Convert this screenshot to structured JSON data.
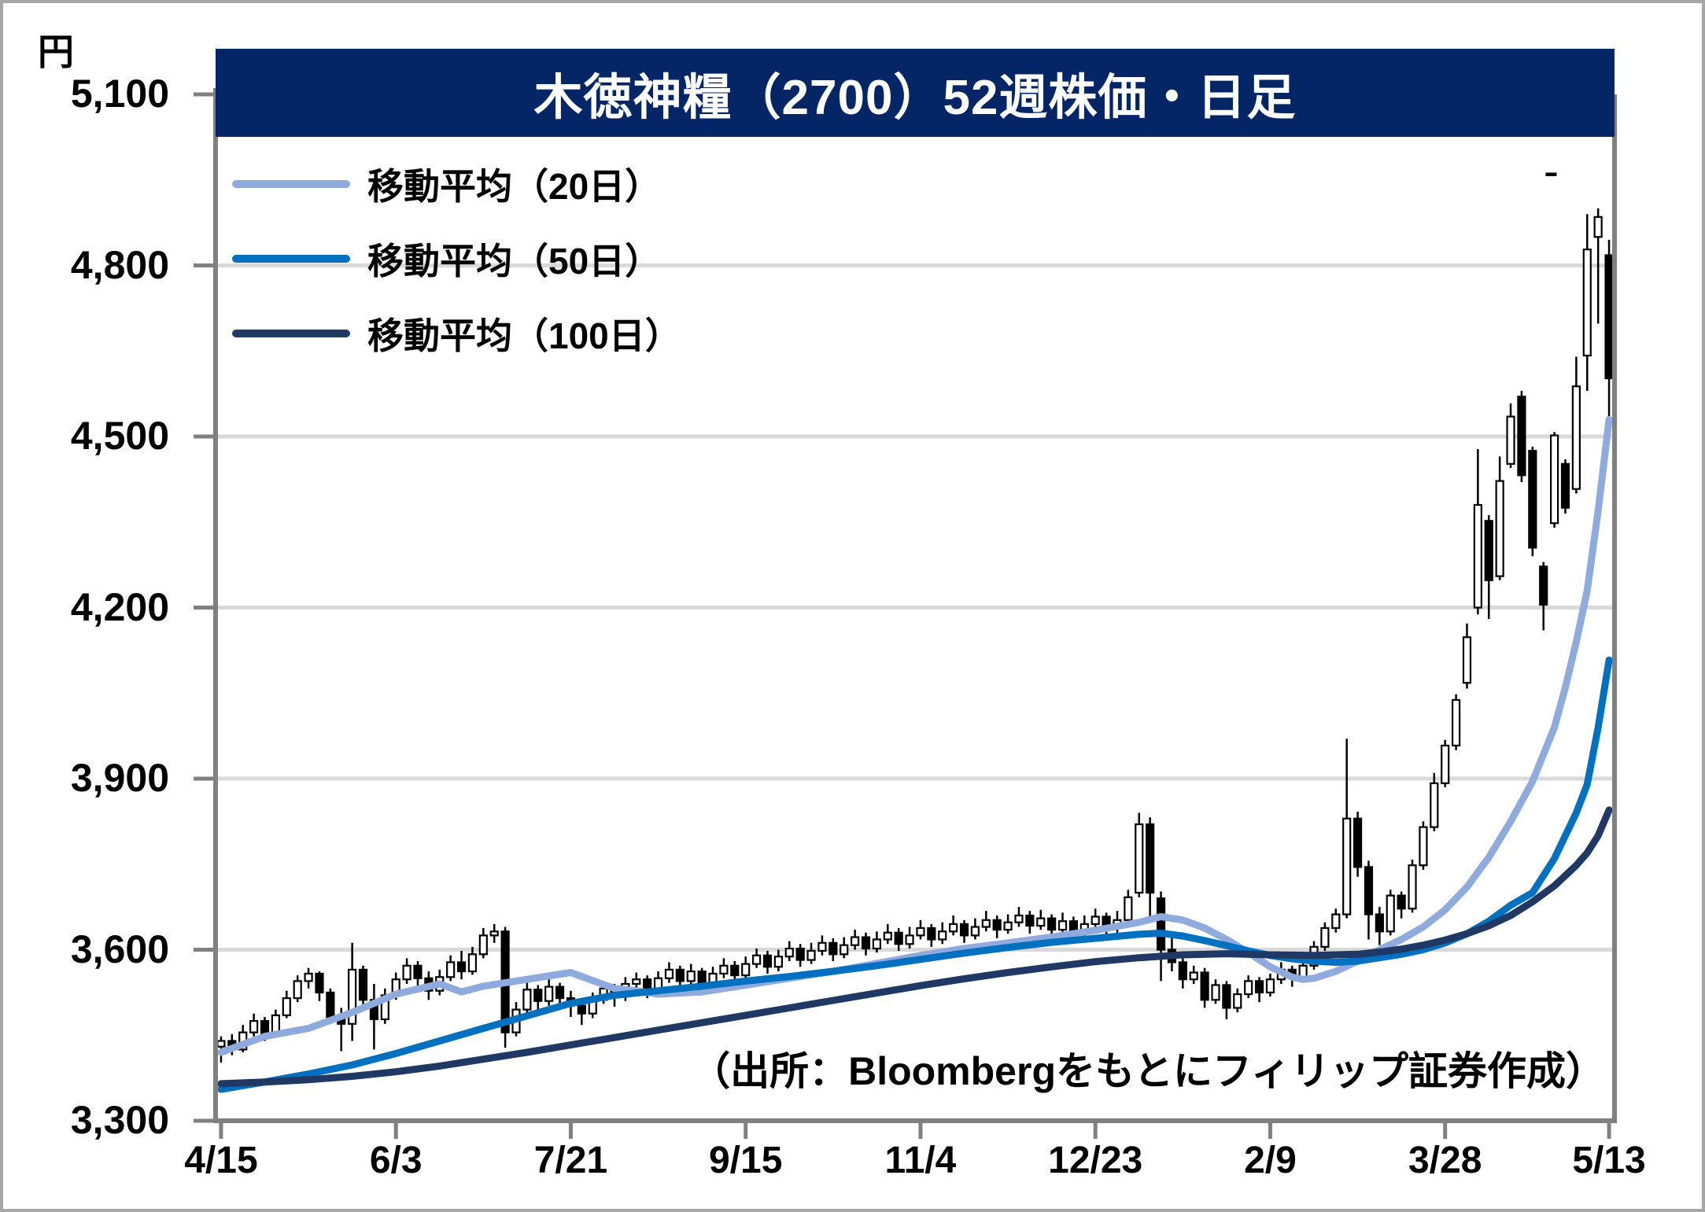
{
  "title": "木徳神糧（2700）52週株価・日足",
  "y_axis": {
    "unit": "円",
    "tick_labels": [
      "5,100",
      "4,800",
      "4,500",
      "4,200",
      "3,900",
      "3,600",
      "3,300"
    ],
    "tick_values": [
      5100,
      4800,
      4500,
      4200,
      3900,
      3600,
      3300
    ]
  },
  "x_axis": {
    "labels": [
      "4/15",
      "6/3",
      "7/21",
      "9/15",
      "11/4",
      "12/23",
      "2/9",
      "3/28",
      "5/13"
    ],
    "label_indices": [
      0,
      16,
      32,
      48,
      64,
      80,
      96,
      112,
      127
    ]
  },
  "legend": {
    "items": [
      {
        "label": "移動平均（20日）",
        "color": "#8FAADC"
      },
      {
        "label": "移動平均（50日）",
        "color": "#0070C0"
      },
      {
        "label": "移動平均（100日）",
        "color": "#1F3864"
      }
    ]
  },
  "source_note": "（出所：Bloombergをもとにフィリップ証券作成）",
  "colors": {
    "title_bar": "#042566",
    "title_text": "#FFFFFF",
    "grid": "#D9D9D9",
    "axis": "#808080",
    "candle_outline": "#000000",
    "candle_up_fill": "#FFFFFF",
    "candle_down_fill": "#000000",
    "background": "#FFFFFF",
    "outer_border": "#A6A6A6"
  },
  "chart_data": {
    "type": "candlestick",
    "title": "木徳神糧（2700）52週株価・日足",
    "ylabel": "円",
    "ylim": [
      3300,
      5100
    ],
    "y_step": 300,
    "grid": "horizontal-only",
    "legend_position": "top-left-inside",
    "n_candles": 128,
    "candles_ohlc": [
      [
        3430,
        3448,
        3402,
        3440
      ],
      [
        3440,
        3452,
        3415,
        3425
      ],
      [
        3425,
        3468,
        3420,
        3455
      ],
      [
        3455,
        3488,
        3448,
        3475
      ],
      [
        3475,
        3482,
        3440,
        3452
      ],
      [
        3452,
        3495,
        3446,
        3485
      ],
      [
        3485,
        3528,
        3480,
        3515
      ],
      [
        3515,
        3555,
        3508,
        3545
      ],
      [
        3545,
        3568,
        3532,
        3558
      ],
      [
        3558,
        3562,
        3510,
        3525
      ],
      [
        3525,
        3532,
        3470,
        3482
      ],
      [
        3482,
        3498,
        3422,
        3470
      ],
      [
        3470,
        3612,
        3440,
        3565
      ],
      [
        3565,
        3572,
        3498,
        3512
      ],
      [
        3512,
        3540,
        3425,
        3478
      ],
      [
        3478,
        3532,
        3470,
        3520
      ],
      [
        3520,
        3560,
        3512,
        3548
      ],
      [
        3548,
        3585,
        3540,
        3572
      ],
      [
        3572,
        3580,
        3536,
        3550
      ],
      [
        3550,
        3562,
        3512,
        3528
      ],
      [
        3528,
        3565,
        3520,
        3552
      ],
      [
        3552,
        3590,
        3545,
        3578
      ],
      [
        3578,
        3598,
        3548,
        3562
      ],
      [
        3562,
        3605,
        3556,
        3592
      ],
      [
        3592,
        3638,
        3585,
        3625
      ],
      [
        3625,
        3645,
        3612,
        3632
      ],
      [
        3632,
        3640,
        3428,
        3455
      ],
      [
        3455,
        3508,
        3448,
        3495
      ],
      [
        3495,
        3542,
        3488,
        3530
      ],
      [
        3530,
        3538,
        3495,
        3510
      ],
      [
        3510,
        3548,
        3502,
        3535
      ],
      [
        3535,
        3542,
        3498,
        3515
      ],
      [
        3515,
        3528,
        3482,
        3502
      ],
      [
        3502,
        3512,
        3468,
        3488
      ],
      [
        3488,
        3525,
        3480,
        3512
      ],
      [
        3512,
        3545,
        3505,
        3532
      ],
      [
        3532,
        3540,
        3500,
        3518
      ],
      [
        3518,
        3552,
        3510,
        3540
      ],
      [
        3540,
        3560,
        3528,
        3548
      ],
      [
        3548,
        3555,
        3515,
        3528
      ],
      [
        3528,
        3562,
        3520,
        3550
      ],
      [
        3550,
        3578,
        3542,
        3565
      ],
      [
        3565,
        3572,
        3532,
        3545
      ],
      [
        3545,
        3575,
        3538,
        3562
      ],
      [
        3562,
        3568,
        3528,
        3540
      ],
      [
        3540,
        3570,
        3532,
        3558
      ],
      [
        3558,
        3585,
        3550,
        3572
      ],
      [
        3572,
        3580,
        3540,
        3555
      ],
      [
        3555,
        3588,
        3548,
        3575
      ],
      [
        3575,
        3602,
        3568,
        3590
      ],
      [
        3590,
        3598,
        3558,
        3570
      ],
      [
        3570,
        3600,
        3562,
        3588
      ],
      [
        3588,
        3615,
        3580,
        3602
      ],
      [
        3602,
        3610,
        3570,
        3582
      ],
      [
        3582,
        3612,
        3575,
        3598
      ],
      [
        3598,
        3625,
        3590,
        3612
      ],
      [
        3612,
        3620,
        3580,
        3592
      ],
      [
        3592,
        3622,
        3585,
        3608
      ],
      [
        3608,
        3635,
        3600,
        3622
      ],
      [
        3622,
        3630,
        3590,
        3602
      ],
      [
        3602,
        3632,
        3595,
        3618
      ],
      [
        3618,
        3645,
        3610,
        3630
      ],
      [
        3630,
        3638,
        3598,
        3610
      ],
      [
        3610,
        3640,
        3602,
        3625
      ],
      [
        3625,
        3652,
        3618,
        3638
      ],
      [
        3638,
        3645,
        3605,
        3618
      ],
      [
        3618,
        3648,
        3610,
        3632
      ],
      [
        3632,
        3660,
        3625,
        3645
      ],
      [
        3645,
        3652,
        3612,
        3625
      ],
      [
        3625,
        3655,
        3618,
        3640
      ],
      [
        3640,
        3668,
        3632,
        3652
      ],
      [
        3652,
        3660,
        3620,
        3635
      ],
      [
        3635,
        3662,
        3628,
        3648
      ],
      [
        3648,
        3675,
        3640,
        3660
      ],
      [
        3660,
        3668,
        3628,
        3642
      ],
      [
        3642,
        3670,
        3635,
        3655
      ],
      [
        3655,
        3662,
        3622,
        3635
      ],
      [
        3635,
        3665,
        3628,
        3650
      ],
      [
        3650,
        3658,
        3618,
        3630
      ],
      [
        3630,
        3660,
        3622,
        3645
      ],
      [
        3645,
        3672,
        3638,
        3658
      ],
      [
        3658,
        3665,
        3625,
        3638
      ],
      [
        3638,
        3668,
        3630,
        3652
      ],
      [
        3652,
        3705,
        3645,
        3692
      ],
      [
        3700,
        3840,
        3692,
        3820
      ],
      [
        3820,
        3832,
        3655,
        3700
      ],
      [
        3690,
        3702,
        3545,
        3600
      ],
      [
        3600,
        3625,
        3562,
        3578
      ],
      [
        3578,
        3585,
        3532,
        3548
      ],
      [
        3548,
        3572,
        3540,
        3560
      ],
      [
        3560,
        3568,
        3498,
        3512
      ],
      [
        3512,
        3548,
        3505,
        3538
      ],
      [
        3538,
        3545,
        3478,
        3498
      ],
      [
        3498,
        3532,
        3490,
        3522
      ],
      [
        3522,
        3555,
        3515,
        3545
      ],
      [
        3545,
        3552,
        3508,
        3525
      ],
      [
        3525,
        3558,
        3518,
        3548
      ],
      [
        3548,
        3578,
        3540,
        3565
      ],
      [
        3565,
        3572,
        3535,
        3550
      ],
      [
        3550,
        3582,
        3542,
        3572
      ],
      [
        3572,
        3615,
        3565,
        3605
      ],
      [
        3605,
        3648,
        3598,
        3638
      ],
      [
        3638,
        3672,
        3630,
        3662
      ],
      [
        3662,
        3970,
        3655,
        3830
      ],
      [
        3830,
        3842,
        3728,
        3745
      ],
      [
        3745,
        3756,
        3618,
        3662
      ],
      [
        3662,
        3675,
        3608,
        3632
      ],
      [
        3632,
        3705,
        3625,
        3695
      ],
      [
        3695,
        3702,
        3655,
        3672
      ],
      [
        3672,
        3758,
        3665,
        3748
      ],
      [
        3748,
        3825,
        3740,
        3815
      ],
      [
        3815,
        3910,
        3808,
        3892
      ],
      [
        3892,
        3968,
        3885,
        3958
      ],
      [
        3958,
        4048,
        3950,
        4038
      ],
      [
        4068,
        4172,
        4058,
        4148
      ],
      [
        4200,
        4478,
        4188,
        4380
      ],
      [
        4352,
        4362,
        4180,
        4248
      ],
      [
        4255,
        4465,
        4248,
        4422
      ],
      [
        4452,
        4558,
        4445,
        4535
      ],
      [
        4570,
        4580,
        4420,
        4432
      ],
      [
        4475,
        4482,
        4290,
        4305
      ],
      [
        4272,
        4280,
        4160,
        4205
      ],
      [
        4348,
        4508,
        4340,
        4502
      ],
      [
        4452,
        4460,
        4365,
        4375
      ],
      [
        4408,
        4640,
        4400,
        4588
      ],
      [
        4642,
        4890,
        4580,
        4828
      ],
      [
        4850,
        4900,
        4698,
        4885
      ],
      [
        4818,
        4845,
        4500,
        4602
      ]
    ],
    "stray_high_dash": {
      "index": 121.7,
      "price": 4960
    },
    "series": [
      {
        "name": "移動平均（20日）",
        "color": "#8FAADC",
        "points": [
          [
            0,
            3420
          ],
          [
            4,
            3448
          ],
          [
            8,
            3462
          ],
          [
            12,
            3490
          ],
          [
            16,
            3522
          ],
          [
            20,
            3540
          ],
          [
            22,
            3526
          ],
          [
            24,
            3536
          ],
          [
            28,
            3548
          ],
          [
            32,
            3560
          ],
          [
            34,
            3546
          ],
          [
            36,
            3532
          ],
          [
            38,
            3528
          ],
          [
            40,
            3522
          ],
          [
            44,
            3526
          ],
          [
            48,
            3538
          ],
          [
            52,
            3550
          ],
          [
            56,
            3562
          ],
          [
            60,
            3576
          ],
          [
            64,
            3590
          ],
          [
            68,
            3602
          ],
          [
            72,
            3612
          ],
          [
            76,
            3622
          ],
          [
            80,
            3634
          ],
          [
            84,
            3648
          ],
          [
            86,
            3658
          ],
          [
            88,
            3652
          ],
          [
            90,
            3638
          ],
          [
            92,
            3618
          ],
          [
            94,
            3595
          ],
          [
            96,
            3570
          ],
          [
            98,
            3552
          ],
          [
            99,
            3548
          ],
          [
            100,
            3550
          ],
          [
            102,
            3562
          ],
          [
            104,
            3580
          ],
          [
            106,
            3600
          ],
          [
            108,
            3618
          ],
          [
            110,
            3640
          ],
          [
            112,
            3670
          ],
          [
            114,
            3710
          ],
          [
            116,
            3762
          ],
          [
            118,
            3825
          ],
          [
            120,
            3895
          ],
          [
            122,
            3990
          ],
          [
            123,
            4060
          ],
          [
            124,
            4140
          ],
          [
            125,
            4230
          ],
          [
            126,
            4370
          ],
          [
            127,
            4530
          ]
        ]
      },
      {
        "name": "移動平均（50日）",
        "color": "#0070C0",
        "points": [
          [
            0,
            3355
          ],
          [
            4,
            3368
          ],
          [
            8,
            3382
          ],
          [
            12,
            3398
          ],
          [
            16,
            3418
          ],
          [
            20,
            3440
          ],
          [
            24,
            3462
          ],
          [
            28,
            3484
          ],
          [
            32,
            3506
          ],
          [
            36,
            3520
          ],
          [
            40,
            3528
          ],
          [
            44,
            3536
          ],
          [
            48,
            3545
          ],
          [
            52,
            3553
          ],
          [
            56,
            3562
          ],
          [
            60,
            3572
          ],
          [
            64,
            3583
          ],
          [
            68,
            3594
          ],
          [
            72,
            3604
          ],
          [
            76,
            3613
          ],
          [
            80,
            3620
          ],
          [
            84,
            3627
          ],
          [
            86,
            3629
          ],
          [
            88,
            3624
          ],
          [
            90,
            3616
          ],
          [
            92,
            3607
          ],
          [
            94,
            3598
          ],
          [
            96,
            3590
          ],
          [
            98,
            3584
          ],
          [
            100,
            3580
          ],
          [
            102,
            3578
          ],
          [
            104,
            3580
          ],
          [
            106,
            3586
          ],
          [
            108,
            3592
          ],
          [
            110,
            3600
          ],
          [
            112,
            3612
          ],
          [
            114,
            3628
          ],
          [
            116,
            3650
          ],
          [
            118,
            3678
          ],
          [
            120,
            3700
          ],
          [
            122,
            3760
          ],
          [
            124,
            3840
          ],
          [
            125,
            3890
          ],
          [
            126,
            3990
          ],
          [
            127,
            4108
          ]
        ]
      },
      {
        "name": "移動平均（100日）",
        "color": "#1F3864",
        "points": [
          [
            0,
            3365
          ],
          [
            4,
            3368
          ],
          [
            8,
            3372
          ],
          [
            12,
            3378
          ],
          [
            16,
            3386
          ],
          [
            20,
            3396
          ],
          [
            24,
            3408
          ],
          [
            28,
            3420
          ],
          [
            32,
            3433
          ],
          [
            36,
            3446
          ],
          [
            40,
            3459
          ],
          [
            44,
            3472
          ],
          [
            48,
            3485
          ],
          [
            52,
            3498
          ],
          [
            56,
            3511
          ],
          [
            60,
            3524
          ],
          [
            64,
            3537
          ],
          [
            68,
            3549
          ],
          [
            72,
            3560
          ],
          [
            76,
            3570
          ],
          [
            80,
            3579
          ],
          [
            84,
            3586
          ],
          [
            88,
            3591
          ],
          [
            92,
            3593
          ],
          [
            96,
            3591
          ],
          [
            100,
            3590
          ],
          [
            104,
            3592
          ],
          [
            106,
            3596
          ],
          [
            108,
            3601
          ],
          [
            110,
            3608
          ],
          [
            112,
            3617
          ],
          [
            114,
            3628
          ],
          [
            116,
            3642
          ],
          [
            118,
            3660
          ],
          [
            120,
            3684
          ],
          [
            122,
            3712
          ],
          [
            124,
            3748
          ],
          [
            125,
            3770
          ],
          [
            126,
            3800
          ],
          [
            127,
            3845
          ]
        ]
      }
    ]
  }
}
